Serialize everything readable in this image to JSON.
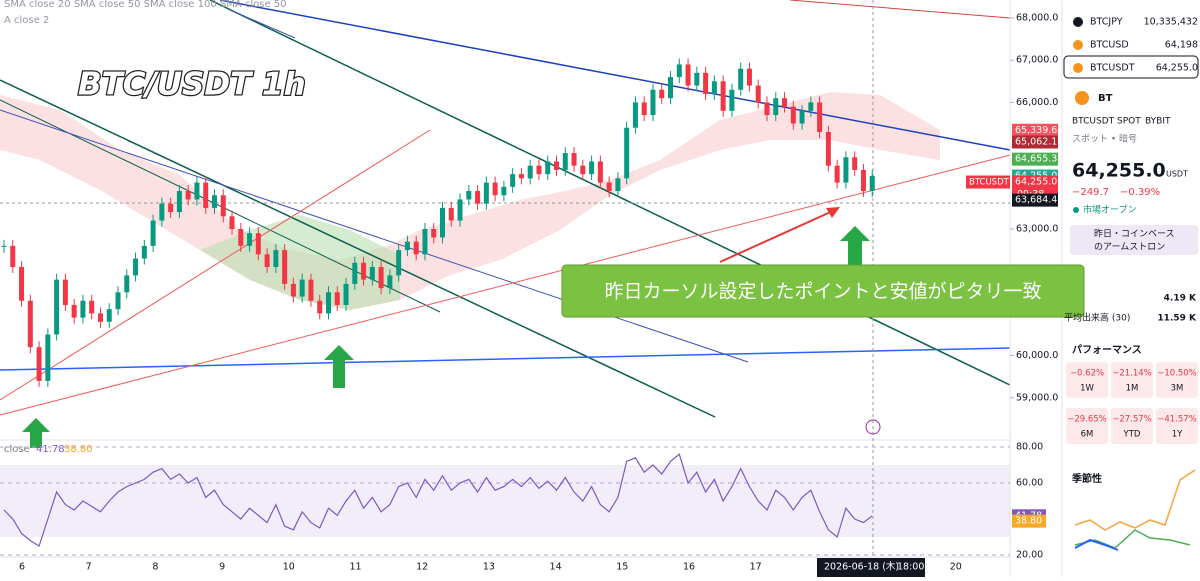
{
  "header": {
    "indicators": "SMA close 20 SMA close 50 SMA close 100 SMA close 50",
    "indicators2": "A close 2",
    "overlay_title": "BTC/USDT 1h"
  },
  "price_chart": {
    "yticks": [
      {
        "value": 68000,
        "label": "68,000.0"
      },
      {
        "value": 67000,
        "label": "67,000.0"
      },
      {
        "value": 66000,
        "label": "66,000.0"
      },
      {
        "value": 63000,
        "label": "63,000.0"
      },
      {
        "value": 60000,
        "label": "60,000.0"
      },
      {
        "value": 59000,
        "label": "59,000.0"
      }
    ],
    "price_tags": [
      {
        "value": 65339.6,
        "label": "65,339.6",
        "color": "#f7525f"
      },
      {
        "value": 65062.1,
        "label": "65,062.1",
        "color": "#b22833"
      },
      {
        "value": 64655.3,
        "label": "64,655.3",
        "color": "#4caf50"
      },
      {
        "value": 64255.0,
        "label": "64,255.0",
        "color": "#22ab94"
      },
      {
        "value": 64255.0,
        "label": "64,255.0",
        "color": "#f23645",
        "sub": "09:38",
        "symbol": "BTCUSDT"
      },
      {
        "value": 63684.4,
        "label": "63,684.4",
        "color": "#131722"
      }
    ],
    "closes": [
      62600,
      62100,
      61300,
      60200,
      59400,
      60500,
      61800,
      61200,
      60900,
      61300,
      61000,
      60800,
      61100,
      61500,
      61900,
      62300,
      62600,
      63200,
      63600,
      63400,
      63900,
      63700,
      64100,
      63500,
      63800,
      63300,
      63000,
      62600,
      62900,
      62400,
      62100,
      62500,
      61700,
      61400,
      61800,
      61300,
      61000,
      61500,
      61200,
      61700,
      62200,
      61800,
      62100,
      61600,
      61900,
      62500,
      62700,
      62400,
      63000,
      62800,
      63500,
      63200,
      63700,
      63900,
      63600,
      64100,
      63800,
      64000,
      64300,
      64200,
      64500,
      64300,
      64600,
      64400,
      64800,
      64500,
      64300,
      64600,
      64100,
      63900,
      64200,
      65400,
      66000,
      65700,
      66300,
      66100,
      66600,
      66900,
      66400,
      66700,
      66200,
      66500,
      65800,
      66300,
      66800,
      66400,
      66000,
      65700,
      66100,
      65900,
      65500,
      65800,
      66000,
      65300,
      64500,
      64100,
      64700,
      64400,
      63900,
      64255.0
    ],
    "annotation": "昨日カーソル設定したポイントと安値がピタリ一致"
  },
  "rsi": {
    "header": "close",
    "rsi_value": {
      "value": 41.78,
      "label": "41.78"
    },
    "ma_value": {
      "value": 38.8,
      "label": "38.80"
    },
    "yticks": [
      {
        "value": 80,
        "label": "80.00"
      },
      {
        "value": 60,
        "label": "60.00"
      },
      {
        "value": 20,
        "label": "20.00"
      }
    ],
    "values": [
      45,
      40,
      32,
      28,
      25,
      40,
      55,
      48,
      45,
      50,
      47,
      44,
      50,
      55,
      58,
      60,
      62,
      66,
      68,
      62,
      65,
      60,
      63,
      52,
      56,
      48,
      44,
      40,
      46,
      42,
      38,
      48,
      36,
      34,
      44,
      38,
      35,
      46,
      42,
      50,
      56,
      46,
      52,
      44,
      48,
      58,
      60,
      52,
      62,
      56,
      64,
      56,
      60,
      62,
      55,
      63,
      56,
      58,
      62,
      58,
      63,
      57,
      61,
      56,
      63,
      55,
      50,
      58,
      48,
      44,
      52,
      72,
      74,
      66,
      70,
      65,
      72,
      76,
      60,
      66,
      55,
      62,
      50,
      58,
      68,
      58,
      50,
      45,
      56,
      52,
      45,
      52,
      56,
      44,
      34,
      30,
      46,
      40,
      38,
      41.78
    ]
  },
  "x_axis": {
    "categories": [
      "6",
      "7",
      "8",
      "9",
      "10",
      "11",
      "12",
      "13",
      "14",
      "15",
      "16",
      "17",
      null,
      null,
      "20"
    ],
    "crosshair_date": "2026-06-18 (木)",
    "crosshair_time": "18:00"
  },
  "watchlist": [
    {
      "symbol": "BTCJPY",
      "price": "10,335,432"
    },
    {
      "symbol": "BTCUSD",
      "price": "64,198"
    },
    {
      "symbol": "BTCUSDT",
      "price": "64,255.0"
    }
  ],
  "symbol_panel": {
    "short": "BT",
    "name": "BTCUSDT SPOT",
    "exchange": "BYBIT",
    "kind": "スポット • 暗号",
    "price": "64,255.0",
    "currency": "USDT",
    "change": "−249.7",
    "change_pct": "−0.39%",
    "status": "市場オープン",
    "news_1": "昨日・コインベース",
    "news_2": "のアームストロン",
    "volume": "4.19 K",
    "avg_volume_label": "平均出来高 (30)",
    "avg_volume": "11.59 K",
    "performance_title": "パフォーマンス",
    "performance": [
      {
        "change": "−0.62%",
        "period": "1W"
      },
      {
        "change": "−21.14%",
        "period": "1M"
      },
      {
        "change": "−10.50%",
        "period": "3M"
      },
      {
        "change": "−29.65%",
        "period": "6M"
      },
      {
        "change": "−27.57%",
        "period": "YTD"
      },
      {
        "change": "−41.57%",
        "period": "1Y"
      }
    ],
    "seasonality_title": "季節性"
  }
}
